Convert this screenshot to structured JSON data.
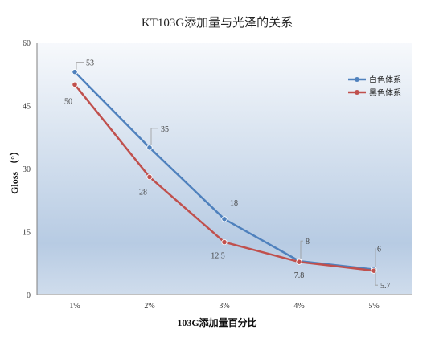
{
  "chart_data": {
    "type": "line",
    "title": "KT103G添加量与光泽的关系",
    "xlabel": "103G添加量百分比",
    "ylabel": "Gloss （°）",
    "categories": [
      "1%",
      "2%",
      "3%",
      "4%",
      "5%"
    ],
    "ylim": [
      0,
      60
    ],
    "yticks": [
      "0",
      "15",
      "30",
      "45",
      "60"
    ],
    "grid": false,
    "legend_position": "right",
    "series": [
      {
        "name": "白色体系",
        "color": "#4f81bd",
        "values": [
          53,
          35,
          18,
          8,
          6
        ],
        "labels": [
          "53",
          "35",
          "18",
          "8",
          "6"
        ]
      },
      {
        "name": "黑色体系",
        "color": "#c0504d",
        "values": [
          50,
          28,
          12.5,
          7.8,
          5.7
        ],
        "labels": [
          "50",
          "28",
          "12.5",
          "7.8",
          "5.7"
        ]
      }
    ]
  }
}
